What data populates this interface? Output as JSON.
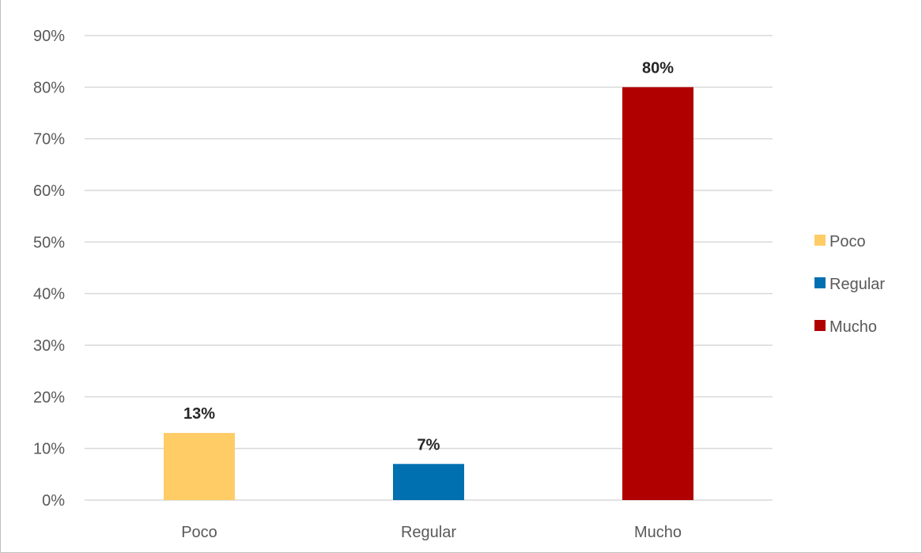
{
  "chart_data": {
    "type": "bar",
    "title": "",
    "xlabel": "",
    "ylabel": "",
    "categories": [
      "Poco",
      "Regular",
      "Mucho"
    ],
    "values": [
      13,
      7,
      80
    ],
    "data_labels": [
      "13%",
      "7%",
      "80%"
    ],
    "colors": [
      "#FFCC66",
      "#0070B0",
      "#B00000"
    ],
    "ylim": [
      0,
      90
    ],
    "yticks": [
      0,
      10,
      20,
      30,
      40,
      50,
      60,
      70,
      80,
      90
    ],
    "ytick_labels": [
      "0%",
      "10%",
      "20%",
      "30%",
      "40%",
      "50%",
      "60%",
      "70%",
      "80%",
      "90%"
    ],
    "grid": true,
    "legend": {
      "position": "right",
      "entries": [
        "Poco",
        "Regular",
        "Mucho"
      ]
    }
  }
}
